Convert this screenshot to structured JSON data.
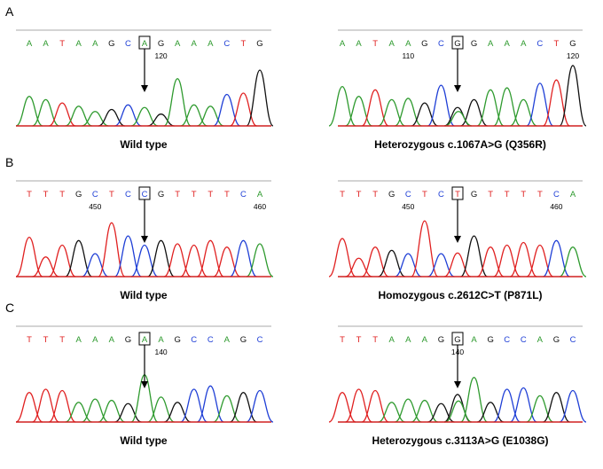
{
  "colors": {
    "A": "#2e9a2e",
    "C": "#1f3fd6",
    "G": "#111111",
    "T": "#e02020",
    "baseline": "#d02020",
    "topline": "#aaaaaa"
  },
  "rows": [
    {
      "letter": "A",
      "traces": [
        {
          "side": "left",
          "caption": "Wild type",
          "bases": [
            "A",
            "A",
            "T",
            "A",
            "A",
            "G",
            "C",
            "A",
            "G",
            "A",
            "A",
            "A",
            "C",
            "T",
            "G"
          ],
          "boxed_index": 7,
          "position_labels": [
            {
              "index": 8,
              "text": "120"
            }
          ],
          "peaks": [
            {
              "b": "A",
              "h": 0.45
            },
            {
              "b": "A",
              "h": 0.4
            },
            {
              "b": "T",
              "h": 0.35
            },
            {
              "b": "A",
              "h": 0.3
            },
            {
              "b": "A",
              "h": 0.22
            },
            {
              "b": "G",
              "h": 0.25
            },
            {
              "b": "C",
              "h": 0.32
            },
            {
              "b": "A",
              "h": 0.28
            },
            {
              "b": "G",
              "h": 0.18
            },
            {
              "b": "A",
              "h": 0.72
            },
            {
              "b": "A",
              "h": 0.32
            },
            {
              "b": "A",
              "h": 0.3
            },
            {
              "b": "C",
              "h": 0.48
            },
            {
              "b": "T",
              "h": 0.5
            },
            {
              "b": "G",
              "h": 0.85
            }
          ]
        },
        {
          "side": "right",
          "caption": "Heterozygous c.1067A>G (Q356R)",
          "bases": [
            "A",
            "A",
            "T",
            "A",
            "A",
            "G",
            "C",
            "G",
            "G",
            "A",
            "A",
            "A",
            "C",
            "T",
            "G"
          ],
          "boxed_index": 7,
          "position_labels": [
            {
              "index": 4,
              "text": "110"
            },
            {
              "index": 14,
              "text": "120"
            }
          ],
          "peaks": [
            {
              "b": "A",
              "h": 0.6
            },
            {
              "b": "A",
              "h": 0.45
            },
            {
              "b": "T",
              "h": 0.55
            },
            {
              "b": "A",
              "h": 0.4
            },
            {
              "b": "A",
              "h": 0.42
            },
            {
              "b": "G",
              "h": 0.35
            },
            {
              "b": "C",
              "h": 0.62
            },
            {
              "b": "G",
              "h": 0.28
            },
            {
              "b": "G",
              "h": 0.4
            },
            {
              "b": "A",
              "h": 0.55
            },
            {
              "b": "A",
              "h": 0.58
            },
            {
              "b": "A",
              "h": 0.4
            },
            {
              "b": "C",
              "h": 0.65
            },
            {
              "b": "T",
              "h": 0.7
            },
            {
              "b": "G",
              "h": 0.92
            }
          ],
          "secondary_peaks": [
            {
              "index": 7,
              "b": "A",
              "h": 0.22
            }
          ]
        }
      ]
    },
    {
      "letter": "B",
      "traces": [
        {
          "side": "left",
          "caption": "Wild type",
          "bases": [
            "T",
            "T",
            "T",
            "G",
            "C",
            "T",
            "C",
            "C",
            "G",
            "T",
            "T",
            "T",
            "T",
            "C",
            "A"
          ],
          "boxed_index": 7,
          "position_labels": [
            {
              "index": 4,
              "text": "450"
            },
            {
              "index": 14,
              "text": "460"
            }
          ],
          "peaks": [
            {
              "b": "T",
              "h": 0.6
            },
            {
              "b": "T",
              "h": 0.3
            },
            {
              "b": "T",
              "h": 0.48
            },
            {
              "b": "G",
              "h": 0.55
            },
            {
              "b": "C",
              "h": 0.35
            },
            {
              "b": "T",
              "h": 0.82
            },
            {
              "b": "C",
              "h": 0.62
            },
            {
              "b": "C",
              "h": 0.48
            },
            {
              "b": "G",
              "h": 0.55
            },
            {
              "b": "T",
              "h": 0.5
            },
            {
              "b": "T",
              "h": 0.48
            },
            {
              "b": "T",
              "h": 0.55
            },
            {
              "b": "T",
              "h": 0.45
            },
            {
              "b": "C",
              "h": 0.55
            },
            {
              "b": "A",
              "h": 0.5
            }
          ]
        },
        {
          "side": "right",
          "caption": "Homozygous c.2612C>T (P871L)",
          "bases": [
            "T",
            "T",
            "T",
            "G",
            "C",
            "T",
            "C",
            "T",
            "G",
            "T",
            "T",
            "T",
            "T",
            "C",
            "A"
          ],
          "boxed_index": 7,
          "position_labels": [
            {
              "index": 4,
              "text": "450"
            },
            {
              "index": 13,
              "text": "460"
            }
          ],
          "peaks": [
            {
              "b": "T",
              "h": 0.58
            },
            {
              "b": "T",
              "h": 0.28
            },
            {
              "b": "T",
              "h": 0.45
            },
            {
              "b": "G",
              "h": 0.4
            },
            {
              "b": "C",
              "h": 0.35
            },
            {
              "b": "T",
              "h": 0.85
            },
            {
              "b": "C",
              "h": 0.35
            },
            {
              "b": "T",
              "h": 0.36
            },
            {
              "b": "G",
              "h": 0.62
            },
            {
              "b": "T",
              "h": 0.45
            },
            {
              "b": "T",
              "h": 0.48
            },
            {
              "b": "T",
              "h": 0.52
            },
            {
              "b": "T",
              "h": 0.48
            },
            {
              "b": "C",
              "h": 0.55
            },
            {
              "b": "A",
              "h": 0.45
            }
          ]
        }
      ]
    },
    {
      "letter": "C",
      "traces": [
        {
          "side": "left",
          "caption": "Wild type",
          "bases": [
            "T",
            "T",
            "T",
            "A",
            "A",
            "A",
            "G",
            "A",
            "A",
            "G",
            "C",
            "C",
            "A",
            "G",
            "C"
          ],
          "boxed_index": 7,
          "position_labels": [
            {
              "index": 8,
              "text": "140"
            }
          ],
          "peaks": [
            {
              "b": "T",
              "h": 0.45
            },
            {
              "b": "T",
              "h": 0.5
            },
            {
              "b": "T",
              "h": 0.48
            },
            {
              "b": "A",
              "h": 0.3
            },
            {
              "b": "A",
              "h": 0.35
            },
            {
              "b": "A",
              "h": 0.33
            },
            {
              "b": "G",
              "h": 0.28
            },
            {
              "b": "A",
              "h": 0.72
            },
            {
              "b": "A",
              "h": 0.38
            },
            {
              "b": "G",
              "h": 0.3
            },
            {
              "b": "C",
              "h": 0.5
            },
            {
              "b": "C",
              "h": 0.55
            },
            {
              "b": "A",
              "h": 0.4
            },
            {
              "b": "G",
              "h": 0.45
            },
            {
              "b": "C",
              "h": 0.48
            }
          ]
        },
        {
          "side": "right",
          "caption": "Heterozygous c.3113A>G (E1038G)",
          "bases": [
            "T",
            "T",
            "T",
            "A",
            "A",
            "A",
            "G",
            "G",
            "A",
            "G",
            "C",
            "C",
            "A",
            "G",
            "C"
          ],
          "boxed_index": 7,
          "position_labels": [
            {
              "index": 7,
              "text": "140"
            }
          ],
          "peaks": [
            {
              "b": "T",
              "h": 0.45
            },
            {
              "b": "T",
              "h": 0.5
            },
            {
              "b": "T",
              "h": 0.48
            },
            {
              "b": "A",
              "h": 0.3
            },
            {
              "b": "A",
              "h": 0.35
            },
            {
              "b": "A",
              "h": 0.33
            },
            {
              "b": "G",
              "h": 0.28
            },
            {
              "b": "G",
              "h": 0.42
            },
            {
              "b": "A",
              "h": 0.68
            },
            {
              "b": "G",
              "h": 0.3
            },
            {
              "b": "C",
              "h": 0.5
            },
            {
              "b": "C",
              "h": 0.52
            },
            {
              "b": "A",
              "h": 0.4
            },
            {
              "b": "G",
              "h": 0.45
            },
            {
              "b": "C",
              "h": 0.48
            }
          ],
          "secondary_peaks": [
            {
              "index": 7,
              "b": "A",
              "h": 0.32
            }
          ]
        }
      ]
    }
  ]
}
